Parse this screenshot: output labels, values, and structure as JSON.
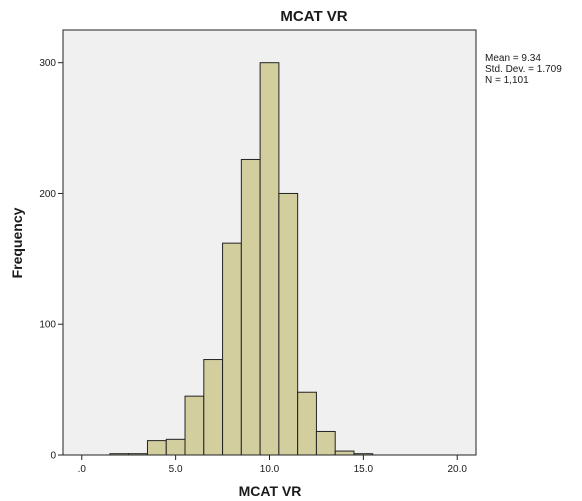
{
  "chart_data": {
    "type": "bar",
    "title": "MCAT VR",
    "xlabel": "MCAT VR",
    "ylabel": "Frequency",
    "xlim": [
      -1.0,
      21.0
    ],
    "ylim": [
      0,
      325
    ],
    "x_ticks": [
      {
        "value": 0,
        "label": ".0"
      },
      {
        "value": 5,
        "label": "5.0"
      },
      {
        "value": 10,
        "label": "10.0"
      },
      {
        "value": 15,
        "label": "15.0"
      },
      {
        "value": 20,
        "label": "20.0"
      }
    ],
    "y_ticks": [
      0,
      100,
      200,
      300
    ],
    "bin_width": 1.0,
    "bins": [
      {
        "start": 1.5,
        "end": 2.5,
        "count": 1
      },
      {
        "start": 2.5,
        "end": 3.5,
        "count": 1
      },
      {
        "start": 3.5,
        "end": 4.5,
        "count": 11
      },
      {
        "start": 4.5,
        "end": 5.5,
        "count": 12
      },
      {
        "start": 5.5,
        "end": 6.5,
        "count": 45
      },
      {
        "start": 6.5,
        "end": 7.5,
        "count": 73
      },
      {
        "start": 7.5,
        "end": 8.5,
        "count": 162
      },
      {
        "start": 8.5,
        "end": 9.5,
        "count": 226
      },
      {
        "start": 9.5,
        "end": 10.5,
        "count": 300
      },
      {
        "start": 10.5,
        "end": 11.5,
        "count": 200
      },
      {
        "start": 11.5,
        "end": 12.5,
        "count": 48
      },
      {
        "start": 12.5,
        "end": 13.5,
        "count": 18
      },
      {
        "start": 13.5,
        "end": 14.5,
        "count": 3
      },
      {
        "start": 14.5,
        "end": 15.5,
        "count": 1
      }
    ],
    "stats": {
      "mean": "Mean = 9.34",
      "std": "Std. Dev. = 1.709",
      "n": "N = 1,101"
    },
    "grid": false,
    "colors": {
      "plot_background": "#f0f0f0",
      "bar_fill": "#d3ce9e",
      "bar_stroke": "#222222",
      "axis": "#222222"
    }
  }
}
